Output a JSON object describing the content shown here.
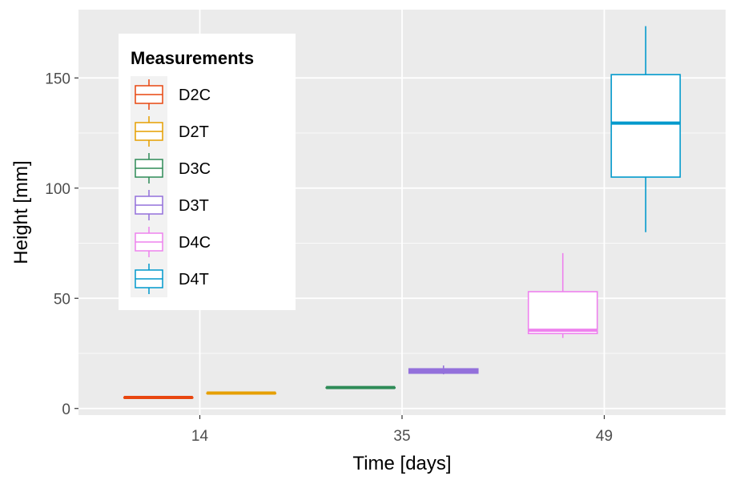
{
  "chart_data": {
    "type": "box",
    "xlabel": "Time [days]",
    "ylabel": "Height [mm]",
    "categories": [
      "14",
      "35",
      "49"
    ],
    "yticks": [
      0,
      50,
      100,
      150
    ],
    "ylim": [
      -3,
      181
    ],
    "grid": true,
    "legend": {
      "title": "Measurements",
      "position": "top-left",
      "entries": [
        "D2C",
        "D2T",
        "D3C",
        "D3T",
        "D4C",
        "D4T"
      ]
    },
    "series": [
      {
        "name": "D2C",
        "color": "#E8460F",
        "category": "14",
        "slot": 0,
        "min": 5,
        "q1": 5,
        "median": 5,
        "q3": 5,
        "max": 5
      },
      {
        "name": "D2T",
        "color": "#E69F00",
        "category": "14",
        "slot": 1,
        "min": 7,
        "q1": 7,
        "median": 7,
        "q3": 7,
        "max": 7
      },
      {
        "name": "D3C",
        "color": "#2E8B57",
        "category": "35",
        "slot": 0,
        "min": 9.5,
        "q1": 9.5,
        "median": 9.5,
        "q3": 9.5,
        "max": 9.5
      },
      {
        "name": "D3T",
        "color": "#9370DB",
        "category": "35",
        "slot": 1,
        "min": 15.5,
        "q1": 16,
        "median": 17,
        "q3": 18,
        "max": 19.5
      },
      {
        "name": "D4C",
        "color": "#EE82EE",
        "category": "49",
        "slot": 0,
        "min": 32,
        "q1": 34,
        "median": 35.5,
        "q3": 53,
        "max": 70.5
      },
      {
        "name": "D4T",
        "color": "#0099CC",
        "category": "49",
        "slot": 1,
        "min": 80,
        "q1": 105,
        "median": 129.5,
        "q3": 151.5,
        "max": 173.5
      }
    ]
  }
}
